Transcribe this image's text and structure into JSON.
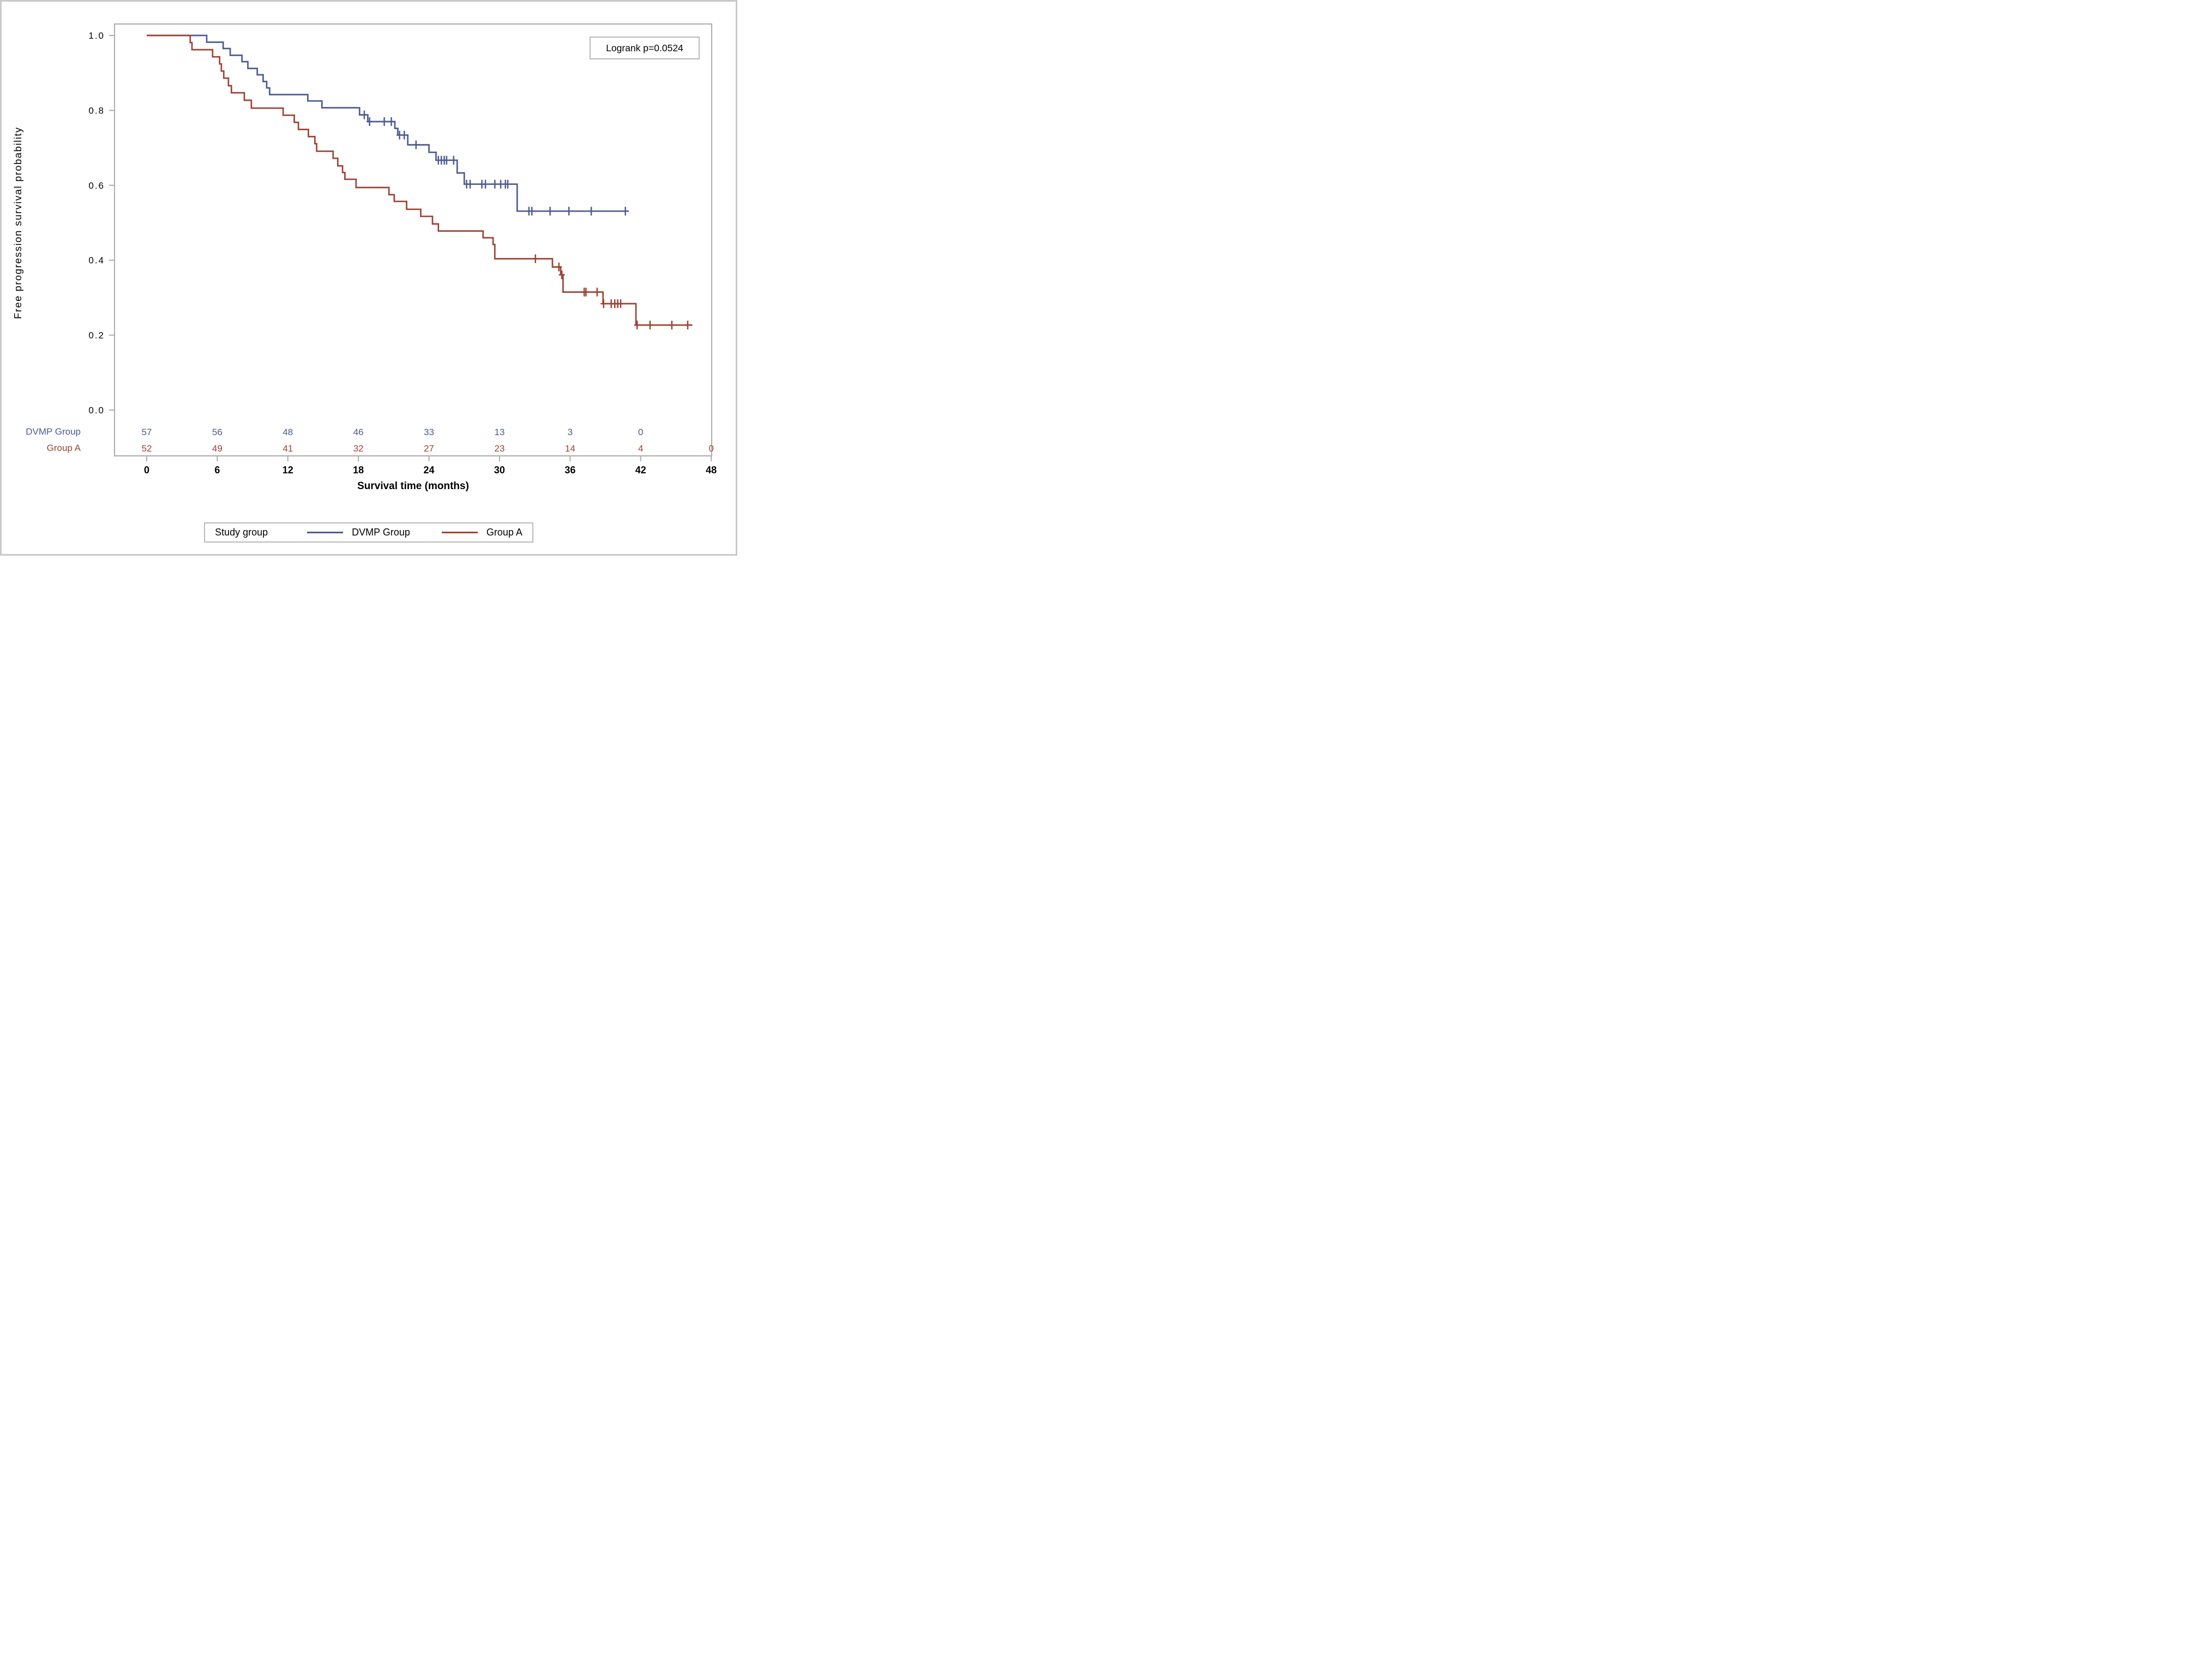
{
  "figure": {
    "background": "#ffffff",
    "border_color": "#c9c9c9"
  },
  "annotation": {
    "logrank_label": "Logrank p=0.0524"
  },
  "axes": {
    "y_title": "Free progression survival probability",
    "x_title": "Survival time (months)"
  },
  "legend": {
    "title": "Study group",
    "entries": [
      {
        "label": "DVMP Group",
        "color": "#4d5a92"
      },
      {
        "label": "Group A",
        "color": "#9e4233"
      }
    ]
  },
  "at_risk": {
    "rows": [
      {
        "label": "DVMP Group",
        "color": "#4d5a92",
        "times": [
          0,
          6,
          12,
          18,
          24,
          30,
          36,
          42
        ],
        "values": [
          "57",
          "56",
          "48",
          "46",
          "33",
          "13",
          "3",
          "0"
        ]
      },
      {
        "label": "Group A",
        "color": "#9e4233",
        "times": [
          0,
          6,
          12,
          18,
          24,
          30,
          36,
          42,
          48
        ],
        "values": [
          "52",
          "49",
          "41",
          "32",
          "27",
          "23",
          "14",
          "4",
          "0"
        ]
      }
    ]
  },
  "chart_data": {
    "type": "line",
    "subtype": "kaplan-meier-step",
    "title": "",
    "xlabel": "Survival time (months)",
    "ylabel": "Free progression survival probability",
    "xlim": [
      0,
      48
    ],
    "ylim": [
      0.0,
      1.0
    ],
    "grid": false,
    "legend_position": "bottom",
    "x_ticks": [
      {
        "value": 0,
        "label": "0"
      },
      {
        "value": 6,
        "label": "6"
      },
      {
        "value": 12,
        "label": "12"
      },
      {
        "value": 18,
        "label": "18"
      },
      {
        "value": 24,
        "label": "24"
      },
      {
        "value": 30,
        "label": "30"
      },
      {
        "value": 36,
        "label": "36"
      },
      {
        "value": 42,
        "label": "42"
      },
      {
        "value": 48,
        "label": "48"
      }
    ],
    "y_ticks": [
      {
        "value": 1.0,
        "label": "1.0"
      },
      {
        "value": 0.8,
        "label": "0.8"
      },
      {
        "value": 0.6,
        "label": "0.6"
      },
      {
        "value": 0.4,
        "label": "0.4"
      },
      {
        "value": 0.2,
        "label": "0.2"
      },
      {
        "value": 0.0,
        "label": "0.0"
      }
    ],
    "annotations": [
      {
        "text": "Logrank p=0.0524",
        "position": "top-right"
      }
    ],
    "series": [
      {
        "name": "DVMP Group",
        "color": "#4d5a92",
        "n_start": 57,
        "start": [
          0,
          1.0
        ],
        "end_time": 41.0,
        "steps": [
          [
            5.1,
            0.982
          ],
          [
            6.5,
            0.965
          ],
          [
            7.1,
            0.947
          ],
          [
            8.1,
            0.93
          ],
          [
            8.6,
            0.912
          ],
          [
            9.4,
            0.895
          ],
          [
            9.9,
            0.877
          ],
          [
            10.2,
            0.86
          ],
          [
            10.45,
            0.842
          ],
          [
            13.7,
            0.825
          ],
          [
            14.9,
            0.807
          ],
          [
            18.1,
            0.788
          ],
          [
            18.8,
            0.77
          ],
          [
            21.1,
            0.752
          ],
          [
            21.35,
            0.734
          ],
          [
            22.2,
            0.708
          ],
          [
            24.0,
            0.688
          ],
          [
            24.6,
            0.667
          ],
          [
            26.4,
            0.633
          ],
          [
            27.0,
            0.603
          ],
          [
            31.5,
            0.531
          ]
        ],
        "censors": [
          [
            18.5,
            0.788
          ],
          [
            18.95,
            0.77
          ],
          [
            20.2,
            0.77
          ],
          [
            20.8,
            0.77
          ],
          [
            21.5,
            0.734
          ],
          [
            21.9,
            0.734
          ],
          [
            22.9,
            0.708
          ],
          [
            24.8,
            0.667
          ],
          [
            25.05,
            0.667
          ],
          [
            25.3,
            0.667
          ],
          [
            25.5,
            0.667
          ],
          [
            26.1,
            0.667
          ],
          [
            27.2,
            0.603
          ],
          [
            27.5,
            0.603
          ],
          [
            28.5,
            0.603
          ],
          [
            28.8,
            0.603
          ],
          [
            29.6,
            0.603
          ],
          [
            30.1,
            0.603
          ],
          [
            30.5,
            0.603
          ],
          [
            30.7,
            0.603
          ],
          [
            32.5,
            0.531
          ],
          [
            32.75,
            0.531
          ],
          [
            34.3,
            0.531
          ],
          [
            35.9,
            0.531
          ],
          [
            37.8,
            0.531
          ],
          [
            40.7,
            0.531
          ]
        ]
      },
      {
        "name": "Group A",
        "color": "#9e4233",
        "n_start": 52,
        "start": [
          0,
          1.0
        ],
        "end_time": 46.4,
        "steps": [
          [
            3.7,
            0.981
          ],
          [
            3.85,
            0.962
          ],
          [
            5.6,
            0.943
          ],
          [
            6.2,
            0.924
          ],
          [
            6.35,
            0.905
          ],
          [
            6.55,
            0.886
          ],
          [
            6.95,
            0.866
          ],
          [
            7.2,
            0.847
          ],
          [
            8.3,
            0.827
          ],
          [
            8.9,
            0.806
          ],
          [
            11.6,
            0.787
          ],
          [
            12.55,
            0.768
          ],
          [
            12.9,
            0.749
          ],
          [
            13.75,
            0.73
          ],
          [
            14.3,
            0.711
          ],
          [
            14.45,
            0.691
          ],
          [
            15.85,
            0.672
          ],
          [
            16.25,
            0.652
          ],
          [
            16.65,
            0.634
          ],
          [
            16.85,
            0.616
          ],
          [
            17.8,
            0.594
          ],
          [
            20.6,
            0.575
          ],
          [
            21.05,
            0.557
          ],
          [
            22.1,
            0.536
          ],
          [
            23.3,
            0.517
          ],
          [
            24.3,
            0.497
          ],
          [
            24.8,
            0.478
          ],
          [
            28.6,
            0.46
          ],
          [
            29.45,
            0.442
          ],
          [
            29.6,
            0.404
          ],
          [
            34.5,
            0.382
          ],
          [
            35.2,
            0.361
          ],
          [
            35.4,
            0.315
          ],
          [
            38.8,
            0.284
          ],
          [
            41.6,
            0.227
          ]
        ],
        "censors": [
          [
            33.05,
            0.404
          ],
          [
            35.05,
            0.382
          ],
          [
            35.3,
            0.361
          ],
          [
            37.2,
            0.315
          ],
          [
            37.35,
            0.315
          ],
          [
            38.3,
            0.315
          ],
          [
            38.85,
            0.284
          ],
          [
            39.5,
            0.284
          ],
          [
            39.8,
            0.284
          ],
          [
            40.05,
            0.284
          ],
          [
            40.3,
            0.284
          ],
          [
            41.7,
            0.227
          ],
          [
            42.8,
            0.227
          ],
          [
            44.65,
            0.227
          ],
          [
            46.0,
            0.227
          ]
        ]
      }
    ]
  }
}
